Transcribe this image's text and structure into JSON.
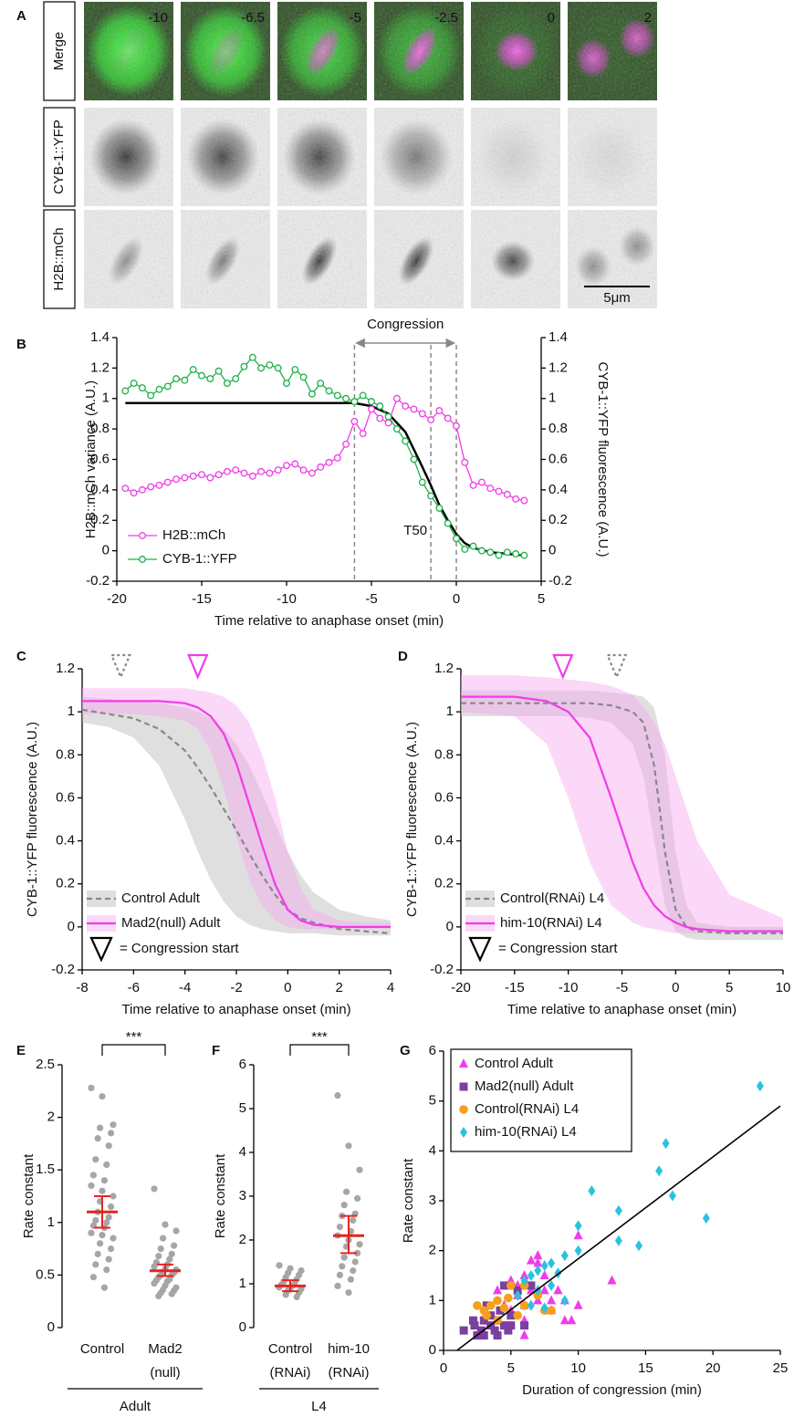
{
  "panel_a": {
    "label": "A",
    "rows": [
      "Merge",
      "CYB-1::YFP",
      "H2B::mCh"
    ],
    "row_colors": [
      "#000000",
      "#1fb04a",
      "#f03ce8"
    ],
    "times": [
      -10,
      -6.5,
      -5,
      -2.5,
      0,
      2
    ],
    "scale_bar": "5μm"
  },
  "chart_data": [
    {
      "type": "line",
      "panel_label": "B",
      "x_label": "Time relative to anaphase onset (min)",
      "y_label": "H2B::mCh variance (A.U.)",
      "y2_label": "CYB-1::YFP fluorescence (A.U.)",
      "xlim": [
        -20,
        5
      ],
      "xticks": [
        -20,
        -15,
        -10,
        -5,
        0,
        5
      ],
      "ylim": [
        -0.2,
        1.4
      ],
      "yticks": [
        -0.2,
        0,
        0.2,
        0.4,
        0.6,
        0.8,
        1,
        1.2,
        1.4
      ],
      "y2lim": [
        -0.2,
        1.4
      ],
      "y2ticks": [
        -0.2,
        0,
        0.2,
        0.4,
        0.6,
        0.8,
        1,
        1.2,
        1.4
      ],
      "x": [
        -19.5,
        -19,
        -18.5,
        -18,
        -17.5,
        -17,
        -16.5,
        -16,
        -15.5,
        -15,
        -14.5,
        -14,
        -13.5,
        -13,
        -12.5,
        -12,
        -11.5,
        -11,
        -10.5,
        -10,
        -9.5,
        -9,
        -8.5,
        -8,
        -7.5,
        -7,
        -6.5,
        -6,
        -5.5,
        -5,
        -4.5,
        -4,
        -3.5,
        -3,
        -2.5,
        -2,
        -1.5,
        -1,
        -0.5,
        0,
        0.5,
        1,
        1.5,
        2,
        2.5,
        3,
        3.5,
        4
      ],
      "series": [
        {
          "name": "H2B::mCh",
          "color": "#f03ce8",
          "values": [
            0.41,
            0.38,
            0.4,
            0.42,
            0.43,
            0.45,
            0.47,
            0.48,
            0.49,
            0.5,
            0.48,
            0.5,
            0.52,
            0.53,
            0.51,
            0.49,
            0.52,
            0.51,
            0.53,
            0.56,
            0.57,
            0.53,
            0.51,
            0.55,
            0.58,
            0.61,
            0.7,
            0.85,
            0.77,
            0.93,
            0.87,
            0.84,
            1.0,
            0.95,
            0.93,
            0.9,
            0.86,
            0.92,
            0.87,
            0.82,
            0.58,
            0.43,
            0.45,
            0.41,
            0.39,
            0.37,
            0.34,
            0.33
          ]
        },
        {
          "name": "CYB-1::YFP",
          "color": "#1fb04a",
          "axis": "y2",
          "values": [
            1.05,
            1.1,
            1.07,
            1.02,
            1.06,
            1.08,
            1.13,
            1.12,
            1.19,
            1.15,
            1.13,
            1.18,
            1.1,
            1.13,
            1.21,
            1.27,
            1.2,
            1.22,
            1.2,
            1.1,
            1.19,
            1.14,
            1.03,
            1.1,
            1.05,
            1.02,
            1.0,
            0.98,
            1.02,
            0.98,
            0.95,
            0.88,
            0.8,
            0.72,
            0.6,
            0.45,
            0.36,
            0.28,
            0.18,
            0.08,
            0.01,
            0.03,
            0,
            -0.01,
            -0.03,
            -0.01,
            -0.02,
            -0.03
          ]
        }
      ],
      "fit": {
        "color": "#000000",
        "x": [
          -19.5,
          -6,
          -5,
          -4,
          -3,
          -2,
          -1.5,
          -1,
          -0.5,
          0,
          0.5,
          1,
          2,
          3,
          4
        ],
        "values": [
          0.97,
          0.97,
          0.95,
          0.9,
          0.78,
          0.55,
          0.43,
          0.3,
          0.2,
          0.11,
          0.05,
          0.02,
          -0.01,
          -0.02,
          -0.03
        ]
      },
      "vlines": [
        -6,
        -1.5,
        0
      ],
      "annotations": {
        "congression": "Congression",
        "t50": "T50"
      },
      "legend": "lower left"
    },
    {
      "type": "sigmoid_band",
      "panel_label": "C",
      "x_label": "Time relative to anaphase onset (min)",
      "y_label": "CYB-1::YFP fluorescence (A.U.)",
      "xlim": [
        -8,
        4
      ],
      "xticks": [
        -8,
        -6,
        -4,
        -2,
        0,
        2,
        4
      ],
      "ylim": [
        -0.2,
        1.2
      ],
      "yticks": [
        -0.2,
        0,
        0.2,
        0.4,
        0.6,
        0.8,
        1,
        1.2
      ],
      "x": [
        -8,
        -7,
        -6,
        -5,
        -4,
        -3.5,
        -3,
        -2.5,
        -2,
        -1.5,
        -1,
        -0.5,
        0,
        0.5,
        1,
        2,
        3,
        4
      ],
      "series": [
        {
          "name": "Control Adult",
          "color": "#888888",
          "band_color": "#b8b8b8",
          "dashed": true,
          "congression_start": -6.5,
          "values": [
            1.01,
            0.99,
            0.97,
            0.92,
            0.82,
            0.74,
            0.65,
            0.55,
            0.45,
            0.34,
            0.24,
            0.15,
            0.08,
            0.04,
            0.02,
            -0.01,
            -0.02,
            -0.03
          ],
          "lower": [
            0.95,
            0.93,
            0.88,
            0.75,
            0.5,
            0.35,
            0.22,
            0.12,
            0.05,
            0.01,
            -0.01,
            -0.02,
            -0.03,
            -0.03,
            -0.03,
            -0.04,
            -0.04,
            -0.04
          ],
          "upper": [
            1.07,
            1.06,
            1.05,
            1.04,
            1.02,
            1.0,
            0.97,
            0.92,
            0.85,
            0.75,
            0.62,
            0.48,
            0.35,
            0.24,
            0.16,
            0.08,
            0.05,
            0.03
          ]
        },
        {
          "name": "Mad2(null) Adult",
          "color": "#f03ce8",
          "band_color": "#f7a6f0",
          "dashed": false,
          "congression_start": -3.5,
          "values": [
            1.05,
            1.05,
            1.05,
            1.05,
            1.04,
            1.02,
            0.98,
            0.9,
            0.76,
            0.57,
            0.38,
            0.2,
            0.08,
            0.03,
            0.01,
            0,
            0,
            0
          ],
          "lower": [
            0.99,
            0.99,
            0.99,
            0.98,
            0.96,
            0.92,
            0.82,
            0.65,
            0.42,
            0.22,
            0.1,
            0.03,
            0,
            -0.01,
            -0.01,
            -0.01,
            -0.01,
            -0.01
          ],
          "upper": [
            1.11,
            1.11,
            1.11,
            1.11,
            1.11,
            1.1,
            1.09,
            1.07,
            1.03,
            0.95,
            0.8,
            0.6,
            0.35,
            0.18,
            0.08,
            0.03,
            0.02,
            0.02
          ]
        }
      ],
      "marker_legend": "= Congression start",
      "legend": "lower left"
    },
    {
      "type": "sigmoid_band",
      "panel_label": "D",
      "x_label": "Time relative to anaphase onset (min)",
      "y_label": "CYB-1::YFP fluorescence (A.U.)",
      "xlim": [
        -20,
        10
      ],
      "xticks": [
        -20,
        -15,
        -10,
        -5,
        0,
        5,
        10
      ],
      "ylim": [
        -0.2,
        1.2
      ],
      "yticks": [
        -0.2,
        0,
        0.2,
        0.4,
        0.6,
        0.8,
        1,
        1.2
      ],
      "x": [
        -20,
        -15,
        -12,
        -10,
        -8,
        -6,
        -4,
        -3,
        -2,
        -1,
        0,
        1,
        2,
        5,
        10
      ],
      "series": [
        {
          "name": "Control(RNAi) L4",
          "color": "#888888",
          "band_color": "#b8b8b8",
          "dashed": true,
          "congression_start": -5.5,
          "values": [
            1.04,
            1.04,
            1.04,
            1.04,
            1.04,
            1.03,
            1.0,
            0.95,
            0.75,
            0.35,
            0.08,
            0,
            -0.02,
            -0.03,
            -0.03
          ],
          "lower": [
            0.98,
            0.98,
            0.98,
            0.98,
            0.97,
            0.95,
            0.85,
            0.7,
            0.4,
            0.1,
            -0.02,
            -0.05,
            -0.06,
            -0.06,
            -0.06
          ],
          "upper": [
            1.1,
            1.1,
            1.1,
            1.1,
            1.1,
            1.09,
            1.08,
            1.07,
            1.02,
            0.8,
            0.35,
            0.1,
            0.02,
            0,
            0
          ]
        },
        {
          "name": "him-10(RNAi) L4",
          "color": "#f03ce8",
          "band_color": "#f7a6f0",
          "dashed": false,
          "congression_start": -10.5,
          "values": [
            1.07,
            1.07,
            1.05,
            1.0,
            0.88,
            0.6,
            0.3,
            0.18,
            0.1,
            0.05,
            0.02,
            0,
            -0.01,
            -0.02,
            -0.02
          ],
          "lower": [
            1.0,
            0.98,
            0.85,
            0.6,
            0.3,
            0.1,
            0.02,
            0,
            -0.01,
            -0.02,
            -0.03,
            -0.03,
            -0.03,
            -0.03,
            -0.03
          ],
          "upper": [
            1.17,
            1.17,
            1.16,
            1.15,
            1.14,
            1.12,
            1.08,
            1.02,
            0.95,
            0.85,
            0.7,
            0.55,
            0.4,
            0.15,
            0.04
          ]
        }
      ],
      "marker_legend": "= Congression start",
      "legend": "lower left"
    },
    {
      "type": "strip",
      "panel_label": "E",
      "y_label": "Rate constant",
      "ylim": [
        0,
        2.5
      ],
      "yticks": [
        0,
        0.5,
        1,
        1.5,
        2,
        2.5
      ],
      "categories": [
        [
          "Control"
        ],
        [
          "Mad2",
          "(null)"
        ]
      ],
      "group_label": "Adult",
      "significance": "***",
      "point_color": "#a6a6a6",
      "mean_color": "#e8231f",
      "groups": [
        {
          "values": [
            2.28,
            2.2,
            1.93,
            1.9,
            1.85,
            1.8,
            1.73,
            1.6,
            1.55,
            1.45,
            1.4,
            1.35,
            1.3,
            1.25,
            1.2,
            1.15,
            1.1,
            1.05,
            1.02,
            1.0,
            0.97,
            0.95,
            0.9,
            0.88,
            0.85,
            0.8,
            0.75,
            0.7,
            0.65,
            0.6,
            0.55,
            0.48,
            0.38
          ],
          "mean": 1.1,
          "ci": [
            0.95,
            1.25
          ]
        },
        {
          "values": [
            1.32,
            0.98,
            0.92,
            0.85,
            0.78,
            0.75,
            0.7,
            0.68,
            0.65,
            0.62,
            0.6,
            0.58,
            0.56,
            0.55,
            0.53,
            0.52,
            0.5,
            0.5,
            0.48,
            0.46,
            0.45,
            0.44,
            0.42,
            0.4,
            0.38,
            0.36,
            0.35,
            0.33,
            0.32,
            0.3
          ],
          "mean": 0.54,
          "ci": [
            0.49,
            0.6
          ]
        }
      ]
    },
    {
      "type": "strip",
      "panel_label": "F",
      "y_label": "Rate constant",
      "ylim": [
        0,
        6
      ],
      "yticks": [
        0,
        1,
        2,
        3,
        4,
        5,
        6
      ],
      "categories": [
        [
          "Control",
          "(RNAi)"
        ],
        [
          "him-10",
          "(RNAi)"
        ]
      ],
      "group_label": "L4",
      "significance": "***",
      "point_color": "#a6a6a6",
      "mean_color": "#e8231f",
      "groups": [
        {
          "values": [
            1.42,
            1.35,
            1.3,
            1.25,
            1.2,
            1.15,
            1.1,
            1.05,
            1.0,
            0.98,
            0.95,
            0.92,
            0.9,
            0.88,
            0.85,
            0.8,
            0.75,
            0.7
          ],
          "mean": 0.95,
          "ci": [
            0.83,
            1.08
          ]
        },
        {
          "values": [
            5.3,
            4.15,
            3.6,
            3.1,
            2.95,
            2.8,
            2.6,
            2.55,
            2.45,
            2.3,
            2.2,
            2.1,
            2.0,
            1.9,
            1.85,
            1.7,
            1.6,
            1.5,
            1.4,
            1.3,
            1.2,
            1.1,
            0.95,
            0.8
          ],
          "mean": 2.1,
          "ci": [
            1.7,
            2.55
          ]
        }
      ]
    },
    {
      "type": "scatter",
      "panel_label": "G",
      "x_label": "Duration of congression (min)",
      "y_label": "Rate constant",
      "xlim": [
        0,
        25
      ],
      "xticks": [
        0,
        5,
        10,
        15,
        20,
        25
      ],
      "ylim": [
        0,
        6
      ],
      "yticks": [
        0,
        1,
        2,
        3,
        4,
        5,
        6
      ],
      "series": [
        {
          "name": "Control Adult",
          "color": "#f03ce8",
          "marker": "triangle",
          "x": [
            4,
            5,
            5.5,
            6,
            6.5,
            7,
            7,
            7.5,
            8,
            8,
            9,
            9,
            9.5,
            10,
            10,
            12.5,
            6,
            5.5,
            6.5,
            7,
            5,
            6,
            7.5,
            8.5,
            4.5,
            6
          ],
          "values": [
            1.2,
            1.4,
            1.3,
            1.5,
            1.8,
            1.9,
            1.75,
            1.2,
            1.0,
            0.8,
            1.0,
            0.6,
            0.6,
            2.3,
            0.9,
            1.4,
            0.9,
            1.1,
            1.2,
            1.0,
            0.8,
            0.6,
            1.5,
            1.2,
            0.9,
            0.3
          ]
        },
        {
          "name": "Mad2(null) Adult",
          "color": "#7b3f9e",
          "marker": "square",
          "x": [
            1.5,
            2.3,
            2.5,
            2.8,
            3,
            3,
            3.5,
            3.5,
            3.8,
            4,
            4,
            4.2,
            4.5,
            4.8,
            5,
            5,
            5.5,
            6.5,
            6,
            3.2,
            2.2,
            4.5
          ],
          "values": [
            0.4,
            0.5,
            0.3,
            0.4,
            0.6,
            0.3,
            0.5,
            0.7,
            0.4,
            0.6,
            0.3,
            0.8,
            0.5,
            0.4,
            0.7,
            0.5,
            1.2,
            1.3,
            0.5,
            0.9,
            0.6,
            1.3
          ]
        },
        {
          "name": "Control(RNAi) L4",
          "color": "#f5a01a",
          "marker": "circle",
          "x": [
            2.5,
            3,
            3.5,
            4,
            4.5,
            4.8,
            5,
            5.5,
            6,
            6,
            7,
            7.5,
            8,
            3.2,
            4
          ],
          "values": [
            0.9,
            0.8,
            0.9,
            1.0,
            0.85,
            1.05,
            1.3,
            0.7,
            1.3,
            0.9,
            1.1,
            0.8,
            0.8,
            0.7,
            0.6
          ]
        },
        {
          "name": "him-10(RNAi) L4",
          "color": "#29c3e0",
          "marker": "diamond",
          "x": [
            23.5,
            16.5,
            16,
            11,
            17,
            13,
            19.5,
            10,
            13,
            14.5,
            9,
            10,
            7.5,
            8,
            7,
            6.5,
            6,
            8,
            7,
            5.5,
            9,
            6.5,
            7.5,
            8.5
          ],
          "values": [
            5.3,
            4.15,
            3.6,
            3.2,
            3.1,
            2.8,
            2.65,
            2.5,
            2.2,
            2.1,
            1.9,
            2.0,
            1.7,
            1.75,
            1.6,
            1.5,
            1.4,
            1.3,
            1.2,
            1.1,
            1.0,
            0.9,
            0.85,
            1.55
          ]
        }
      ],
      "fit": {
        "color": "#000000",
        "x": [
          1,
          25
        ],
        "values": [
          0,
          4.9
        ]
      },
      "legend": "upper left"
    }
  ]
}
